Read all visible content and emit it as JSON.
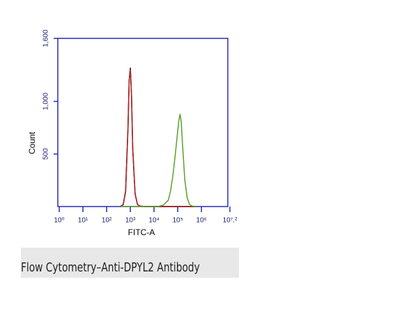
{
  "chart_data": {
    "type": "line",
    "caption": "Flow Cytometry–Anti-DPYL2 Antibody",
    "x_label": "FITC-A",
    "y_label": "Count",
    "x_log": true,
    "xlim": [
      1,
      15848932
    ],
    "ylim": [
      0,
      1600
    ],
    "xticks": [
      {
        "value": 1,
        "label": "10⁰"
      },
      {
        "value": 10,
        "label": "10¹"
      },
      {
        "value": 100,
        "label": "10²"
      },
      {
        "value": 1000,
        "label": "10³"
      },
      {
        "value": 10000,
        "label": "10⁴"
      },
      {
        "value": 100000,
        "label": "10⁵"
      },
      {
        "value": 1000000,
        "label": "10⁶"
      },
      {
        "value": 15848932,
        "label": "10⁷.²"
      }
    ],
    "yticks": [
      500,
      {
        "value": 1000,
        "label": "1,000"
      },
      {
        "value": 1600,
        "label": "1,600"
      }
    ],
    "axis_color": "#2a2ab8",
    "x": [
      398,
      501,
      631,
      794,
      891,
      1000,
      1122,
      1259,
      1585,
      1995,
      2512,
      3981,
      6310,
      10000,
      15849,
      25119,
      39811,
      50119,
      63096,
      79433,
      100000,
      112202,
      125893,
      141254,
      158489,
      199526,
      251189,
      316228,
      398107,
      630957
    ],
    "series": [
      {
        "color": "#000000",
        "values": [
          5,
          20,
          150,
          750,
          1200,
          1320,
          1050,
          550,
          120,
          20,
          5,
          0,
          0,
          0,
          0,
          0,
          0,
          0,
          0,
          0,
          0,
          0,
          0,
          0,
          0,
          0,
          0,
          0,
          0,
          0
        ]
      },
      {
        "color": "#b22222",
        "values": [
          4,
          18,
          140,
          730,
          1190,
          1310,
          1060,
          560,
          125,
          22,
          5,
          0,
          0,
          0,
          0,
          0,
          0,
          0,
          0,
          0,
          0,
          0,
          0,
          0,
          0,
          0,
          0,
          0,
          0,
          0
        ]
      },
      {
        "color": "#5aa02c",
        "values": [
          0,
          0,
          0,
          0,
          0,
          0,
          0,
          0,
          0,
          0,
          0,
          0,
          0,
          0,
          2,
          15,
          60,
          150,
          300,
          500,
          720,
          820,
          880,
          800,
          600,
          250,
          80,
          20,
          5,
          0
        ]
      }
    ]
  }
}
